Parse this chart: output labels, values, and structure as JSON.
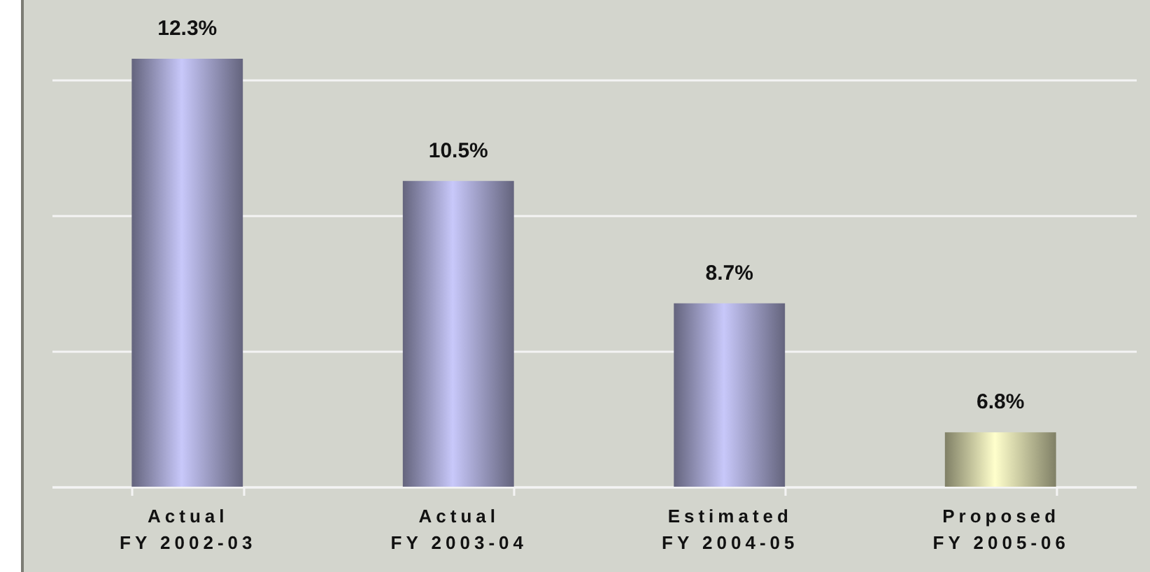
{
  "chart_data": {
    "type": "bar",
    "categories": [
      "Actual\nFY 2002-03",
      "Actual\nFY 2003-04",
      "Estimated\nFY 2004-05",
      "Proposed\nFY 2005-06"
    ],
    "values": [
      12.3,
      10.5,
      8.7,
      6.8
    ],
    "colors": [
      "#c8c8fa",
      "#c8c8fa",
      "#c8c8fa",
      "#ffffcc"
    ],
    "value_labels": [
      "12.3%",
      "10.5%",
      "8.7%",
      "6.8%"
    ],
    "ylim": [
      6,
      12.3
    ],
    "yticks": [
      {
        "value": 6,
        "label": null
      },
      {
        "value": 8,
        "label": null
      },
      {
        "value": 10,
        "label": null
      },
      {
        "value": 12,
        "label": null
      }
    ],
    "tick_labels": "x",
    "grid": "y"
  }
}
